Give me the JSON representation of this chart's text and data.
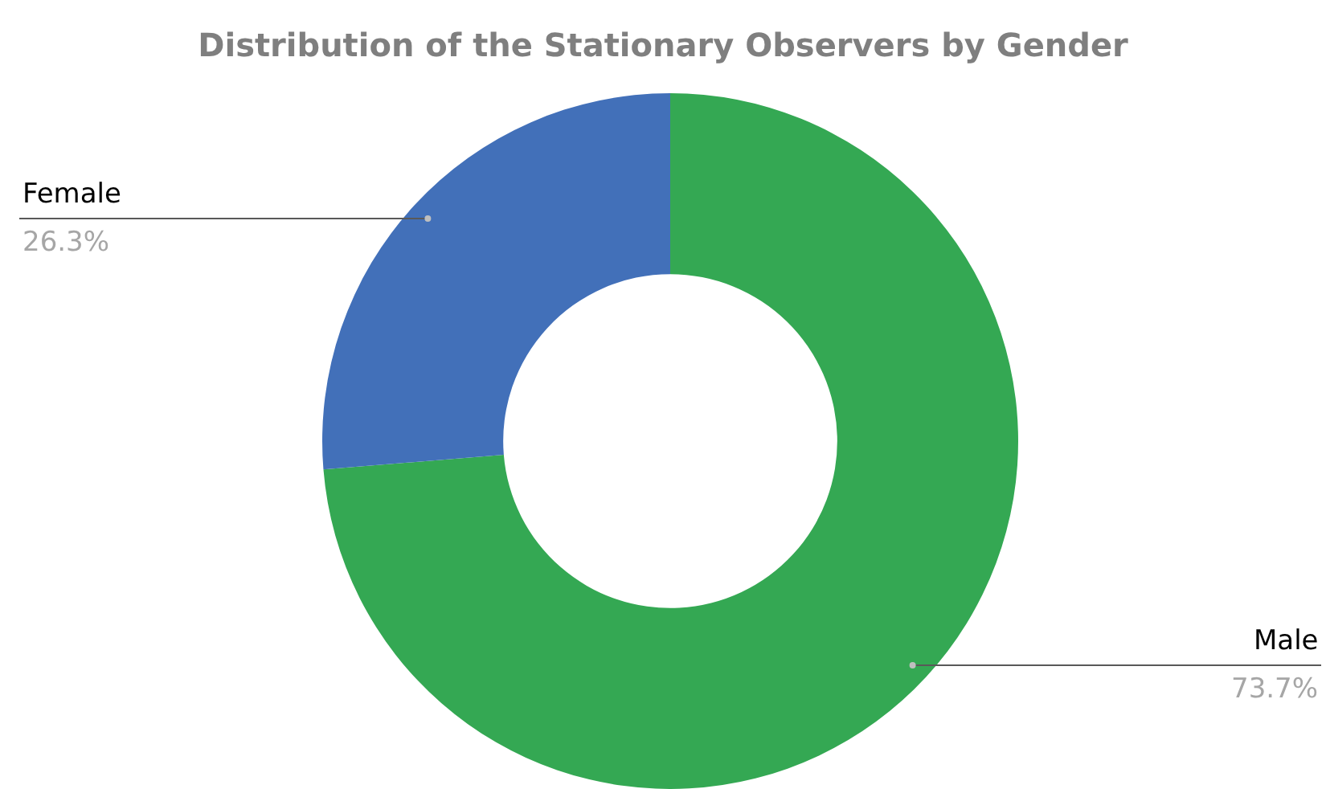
{
  "chart_data": {
    "type": "donut",
    "title": "Distribution of the Stationary Observers by Gender",
    "categories": [
      "Male",
      "Female"
    ],
    "values": [
      73.7,
      26.3
    ],
    "colors": [
      "#34a853",
      "#4270b9"
    ],
    "value_labels": [
      "73.7%",
      "26.3%"
    ]
  }
}
